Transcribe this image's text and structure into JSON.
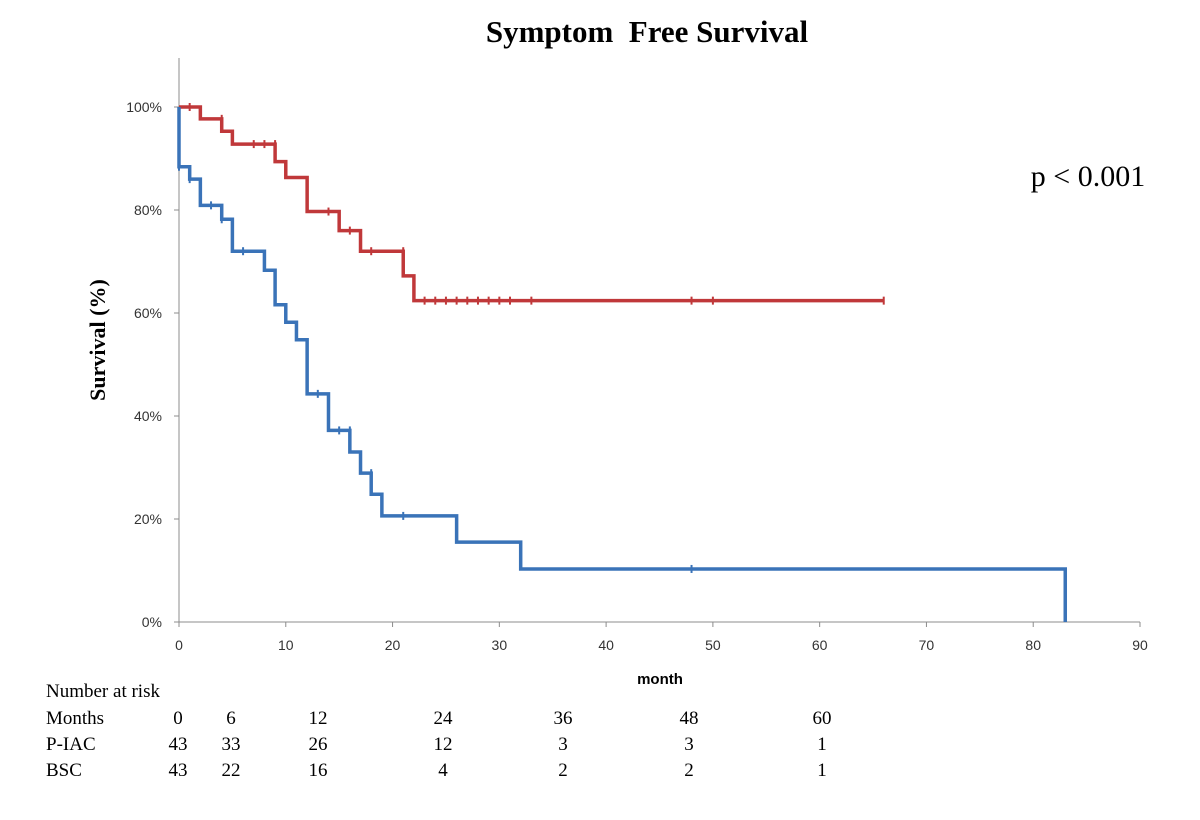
{
  "chart_data": {
    "type": "line",
    "step": true,
    "title": "Symptom  Free Survival",
    "xlabel": "month",
    "ylabel": "Survival (%)",
    "annotation": "p < 0.001",
    "xlim": [
      0,
      90
    ],
    "ylim": [
      0,
      1.1
    ],
    "xticks": [
      0,
      10,
      20,
      30,
      40,
      50,
      60,
      70,
      80,
      90
    ],
    "yticks": [
      {
        "value": 0,
        "label": "0%"
      },
      {
        "value": 0.2,
        "label": "20%"
      },
      {
        "value": 0.4,
        "label": "40%"
      },
      {
        "value": 0.6,
        "label": "60%"
      },
      {
        "value": 0.8,
        "label": "80%"
      },
      {
        "value": 1.0,
        "label": "100%"
      }
    ],
    "grid": false,
    "series": [
      {
        "name": "P-IAC",
        "color": "#c0383a",
        "steps": [
          [
            0,
            1.0
          ],
          [
            2,
            0.977
          ],
          [
            4,
            0.953
          ],
          [
            5,
            0.928
          ],
          [
            9,
            0.894
          ],
          [
            10,
            0.863
          ],
          [
            12,
            0.797
          ],
          [
            15,
            0.76
          ],
          [
            17,
            0.72
          ],
          [
            21,
            0.672
          ],
          [
            22,
            0.624
          ],
          [
            66,
            0.624
          ]
        ],
        "censors": [
          [
            1,
            1.0
          ],
          [
            4,
            0.977
          ],
          [
            7,
            0.928
          ],
          [
            8,
            0.928
          ],
          [
            9,
            0.928
          ],
          [
            14,
            0.797
          ],
          [
            16,
            0.76
          ],
          [
            18,
            0.72
          ],
          [
            21,
            0.72
          ],
          [
            23,
            0.624
          ],
          [
            24,
            0.624
          ],
          [
            25,
            0.624
          ],
          [
            26,
            0.624
          ],
          [
            27,
            0.624
          ],
          [
            28,
            0.624
          ],
          [
            29,
            0.624
          ],
          [
            30,
            0.624
          ],
          [
            31,
            0.624
          ],
          [
            33,
            0.624
          ],
          [
            48,
            0.624
          ],
          [
            50,
            0.624
          ],
          [
            66,
            0.624
          ]
        ]
      },
      {
        "name": "BSC",
        "color": "#3a73b8",
        "steps": [
          [
            0,
            1.0
          ],
          [
            0,
            0.884
          ],
          [
            1,
            0.86
          ],
          [
            2,
            0.809
          ],
          [
            4,
            0.782
          ],
          [
            5,
            0.72
          ],
          [
            8,
            0.683
          ],
          [
            9,
            0.616
          ],
          [
            10,
            0.582
          ],
          [
            11,
            0.548
          ],
          [
            12,
            0.443
          ],
          [
            14,
            0.372
          ],
          [
            16,
            0.33
          ],
          [
            17,
            0.289
          ],
          [
            18,
            0.248
          ],
          [
            19,
            0.206
          ],
          [
            26,
            0.155
          ],
          [
            32,
            0.103
          ],
          [
            83,
            0.103
          ],
          [
            83,
            0
          ]
        ],
        "censors": [
          [
            0,
            0.884
          ],
          [
            1,
            0.86
          ],
          [
            3,
            0.809
          ],
          [
            4,
            0.782
          ],
          [
            6,
            0.72
          ],
          [
            13,
            0.443
          ],
          [
            15,
            0.372
          ],
          [
            16,
            0.372
          ],
          [
            18,
            0.289
          ],
          [
            21,
            0.206
          ],
          [
            48,
            0.103
          ]
        ]
      }
    ],
    "risk_table": {
      "heading": "Number at risk",
      "header": [
        "Months",
        "0",
        "6",
        "12",
        "24",
        "36",
        "48",
        "60"
      ],
      "rows": [
        [
          "P-IAC",
          "43",
          "33",
          "26",
          "12",
          "3",
          "3",
          "1"
        ],
        [
          "BSC",
          "43",
          "22",
          "16",
          "4",
          "2",
          "2",
          "1"
        ]
      ]
    }
  }
}
